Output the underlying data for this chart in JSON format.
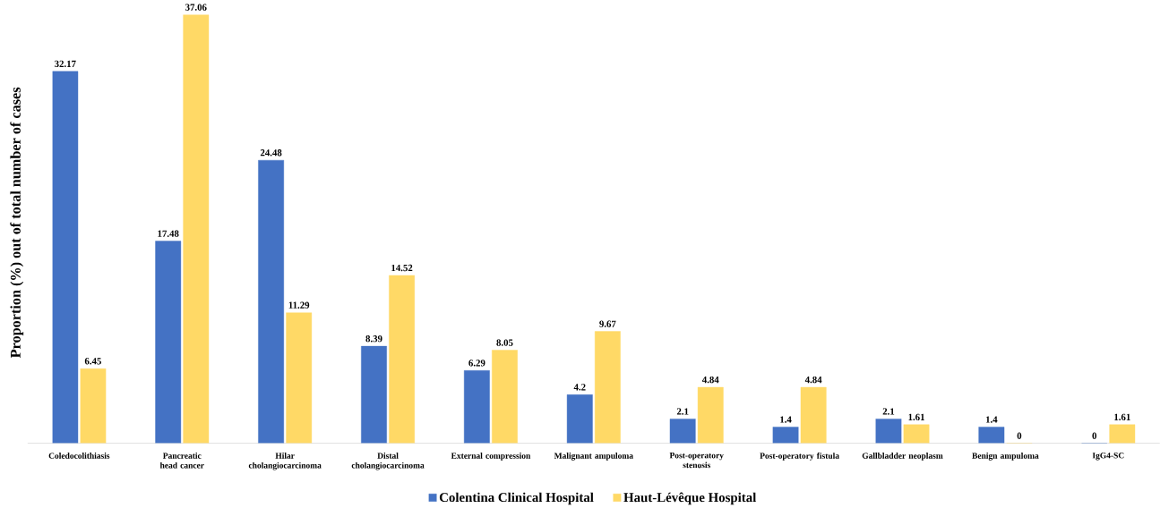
{
  "chart_data": {
    "type": "bar",
    "ylabel": "Proportion (%) out of total number of cases",
    "categories": [
      "Coledocolithiasis",
      "Pancreatic head cancer",
      "Hilar cholangiocarcinoma",
      "Distal cholangiocarcinoma",
      "External compression",
      "Malignant ampuloma",
      "Post-operatory stenosis",
      "Post-operatory fistula",
      "Gallbladder neoplasm",
      "Benign ampuloma",
      "IgG4-SC"
    ],
    "series": [
      {
        "name": "Colentina Clinical Hospital",
        "color": "#4472c4",
        "values": [
          32.17,
          17.48,
          24.48,
          8.39,
          6.29,
          4.2,
          2.1,
          1.4,
          2.1,
          1.4,
          0
        ]
      },
      {
        "name": "Haut-Lévêque Hospital",
        "color": "#ffd966",
        "values": [
          6.45,
          37.06,
          11.29,
          14.52,
          8.05,
          9.67,
          4.84,
          4.84,
          1.61,
          0,
          1.61
        ]
      }
    ],
    "data_labels": true,
    "legend": "bottom"
  }
}
